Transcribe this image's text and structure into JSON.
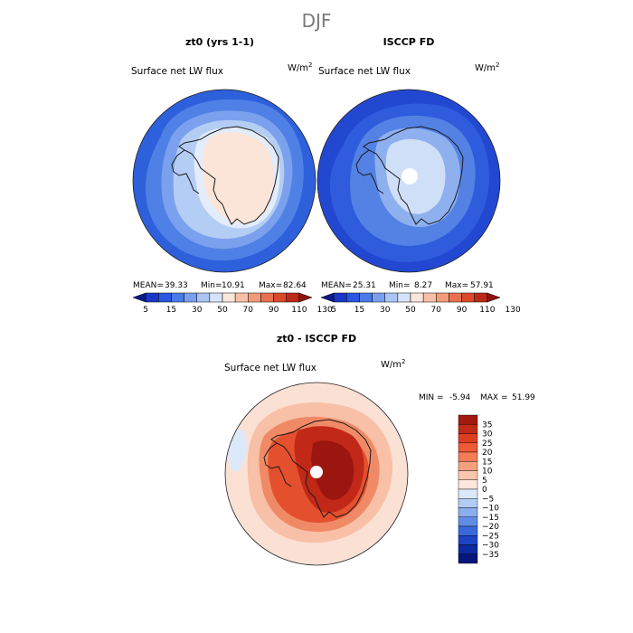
{
  "figure": {
    "title": "DJF"
  },
  "chart_data": [
    {
      "type": "heatmap",
      "projection": "south-polar-stereographic",
      "title": "zt0 (yrs 1-1)",
      "field": "Surface net LW flux",
      "units_prefix": "W/m",
      "units_exp": "2",
      "stats": {
        "mean_label": "MEAN=",
        "mean": "39.33",
        "min_label": "Min=",
        "min": "10.91",
        "max_label": "Max=",
        "max": "82.64"
      },
      "colorbar": {
        "orientation": "horizontal",
        "levels": [
          5,
          15,
          30,
          50,
          70,
          90,
          110,
          130
        ],
        "colors": [
          "#0a1b8a",
          "#1c36c8",
          "#2a56e0",
          "#4a7ae8",
          "#7a9ff0",
          "#a9c4f5",
          "#d6e4fa",
          "#fbe6da",
          "#f7c0a6",
          "#f29b7a",
          "#e8714f",
          "#d94a2b",
          "#bb2a18",
          "#8f1410"
        ]
      }
    },
    {
      "type": "heatmap",
      "projection": "south-polar-stereographic",
      "title": "ISCCP FD",
      "field": "Surface net LW flux",
      "units_prefix": "W/m",
      "units_exp": "2",
      "stats": {
        "mean_label": "MEAN=",
        "mean": "25.31",
        "min_label": "Min=",
        "min": "8.27",
        "max_label": "Max=",
        "max": "57.91"
      },
      "colorbar": {
        "orientation": "horizontal",
        "levels": [
          5,
          15,
          30,
          50,
          70,
          90,
          110,
          130
        ],
        "colors": [
          "#0a1b8a",
          "#1c36c8",
          "#2a56e0",
          "#4a7ae8",
          "#7a9ff0",
          "#a9c4f5",
          "#d6e4fa",
          "#fbe6da",
          "#f7c0a6",
          "#f29b7a",
          "#e8714f",
          "#d94a2b",
          "#bb2a18",
          "#8f1410"
        ]
      }
    },
    {
      "type": "heatmap",
      "projection": "south-polar-stereographic",
      "title": "zt0 - ISCCP FD",
      "field": "Surface net LW flux",
      "units_prefix": "W/m",
      "units_exp": "2",
      "stats": {
        "min_label": "MIN =",
        "min": "-5.94",
        "max_label": "MAX =",
        "max": "51.99"
      },
      "colorbar": {
        "orientation": "vertical",
        "levels": [
          35,
          30,
          25,
          20,
          15,
          10,
          5,
          0,
          -5,
          -10,
          -15,
          -20,
          -25,
          -30,
          -35
        ],
        "colors": [
          "#a11a10",
          "#c22a18",
          "#dd3e22",
          "#ec5a36",
          "#f47c56",
          "#f7a07e",
          "#fbc6ad",
          "#fde6db",
          "#dbe8fa",
          "#b3ccf5",
          "#8aaeee",
          "#608ce6",
          "#3a68dc",
          "#1c44c4",
          "#0c2aa0",
          "#06167a"
        ]
      }
    }
  ]
}
